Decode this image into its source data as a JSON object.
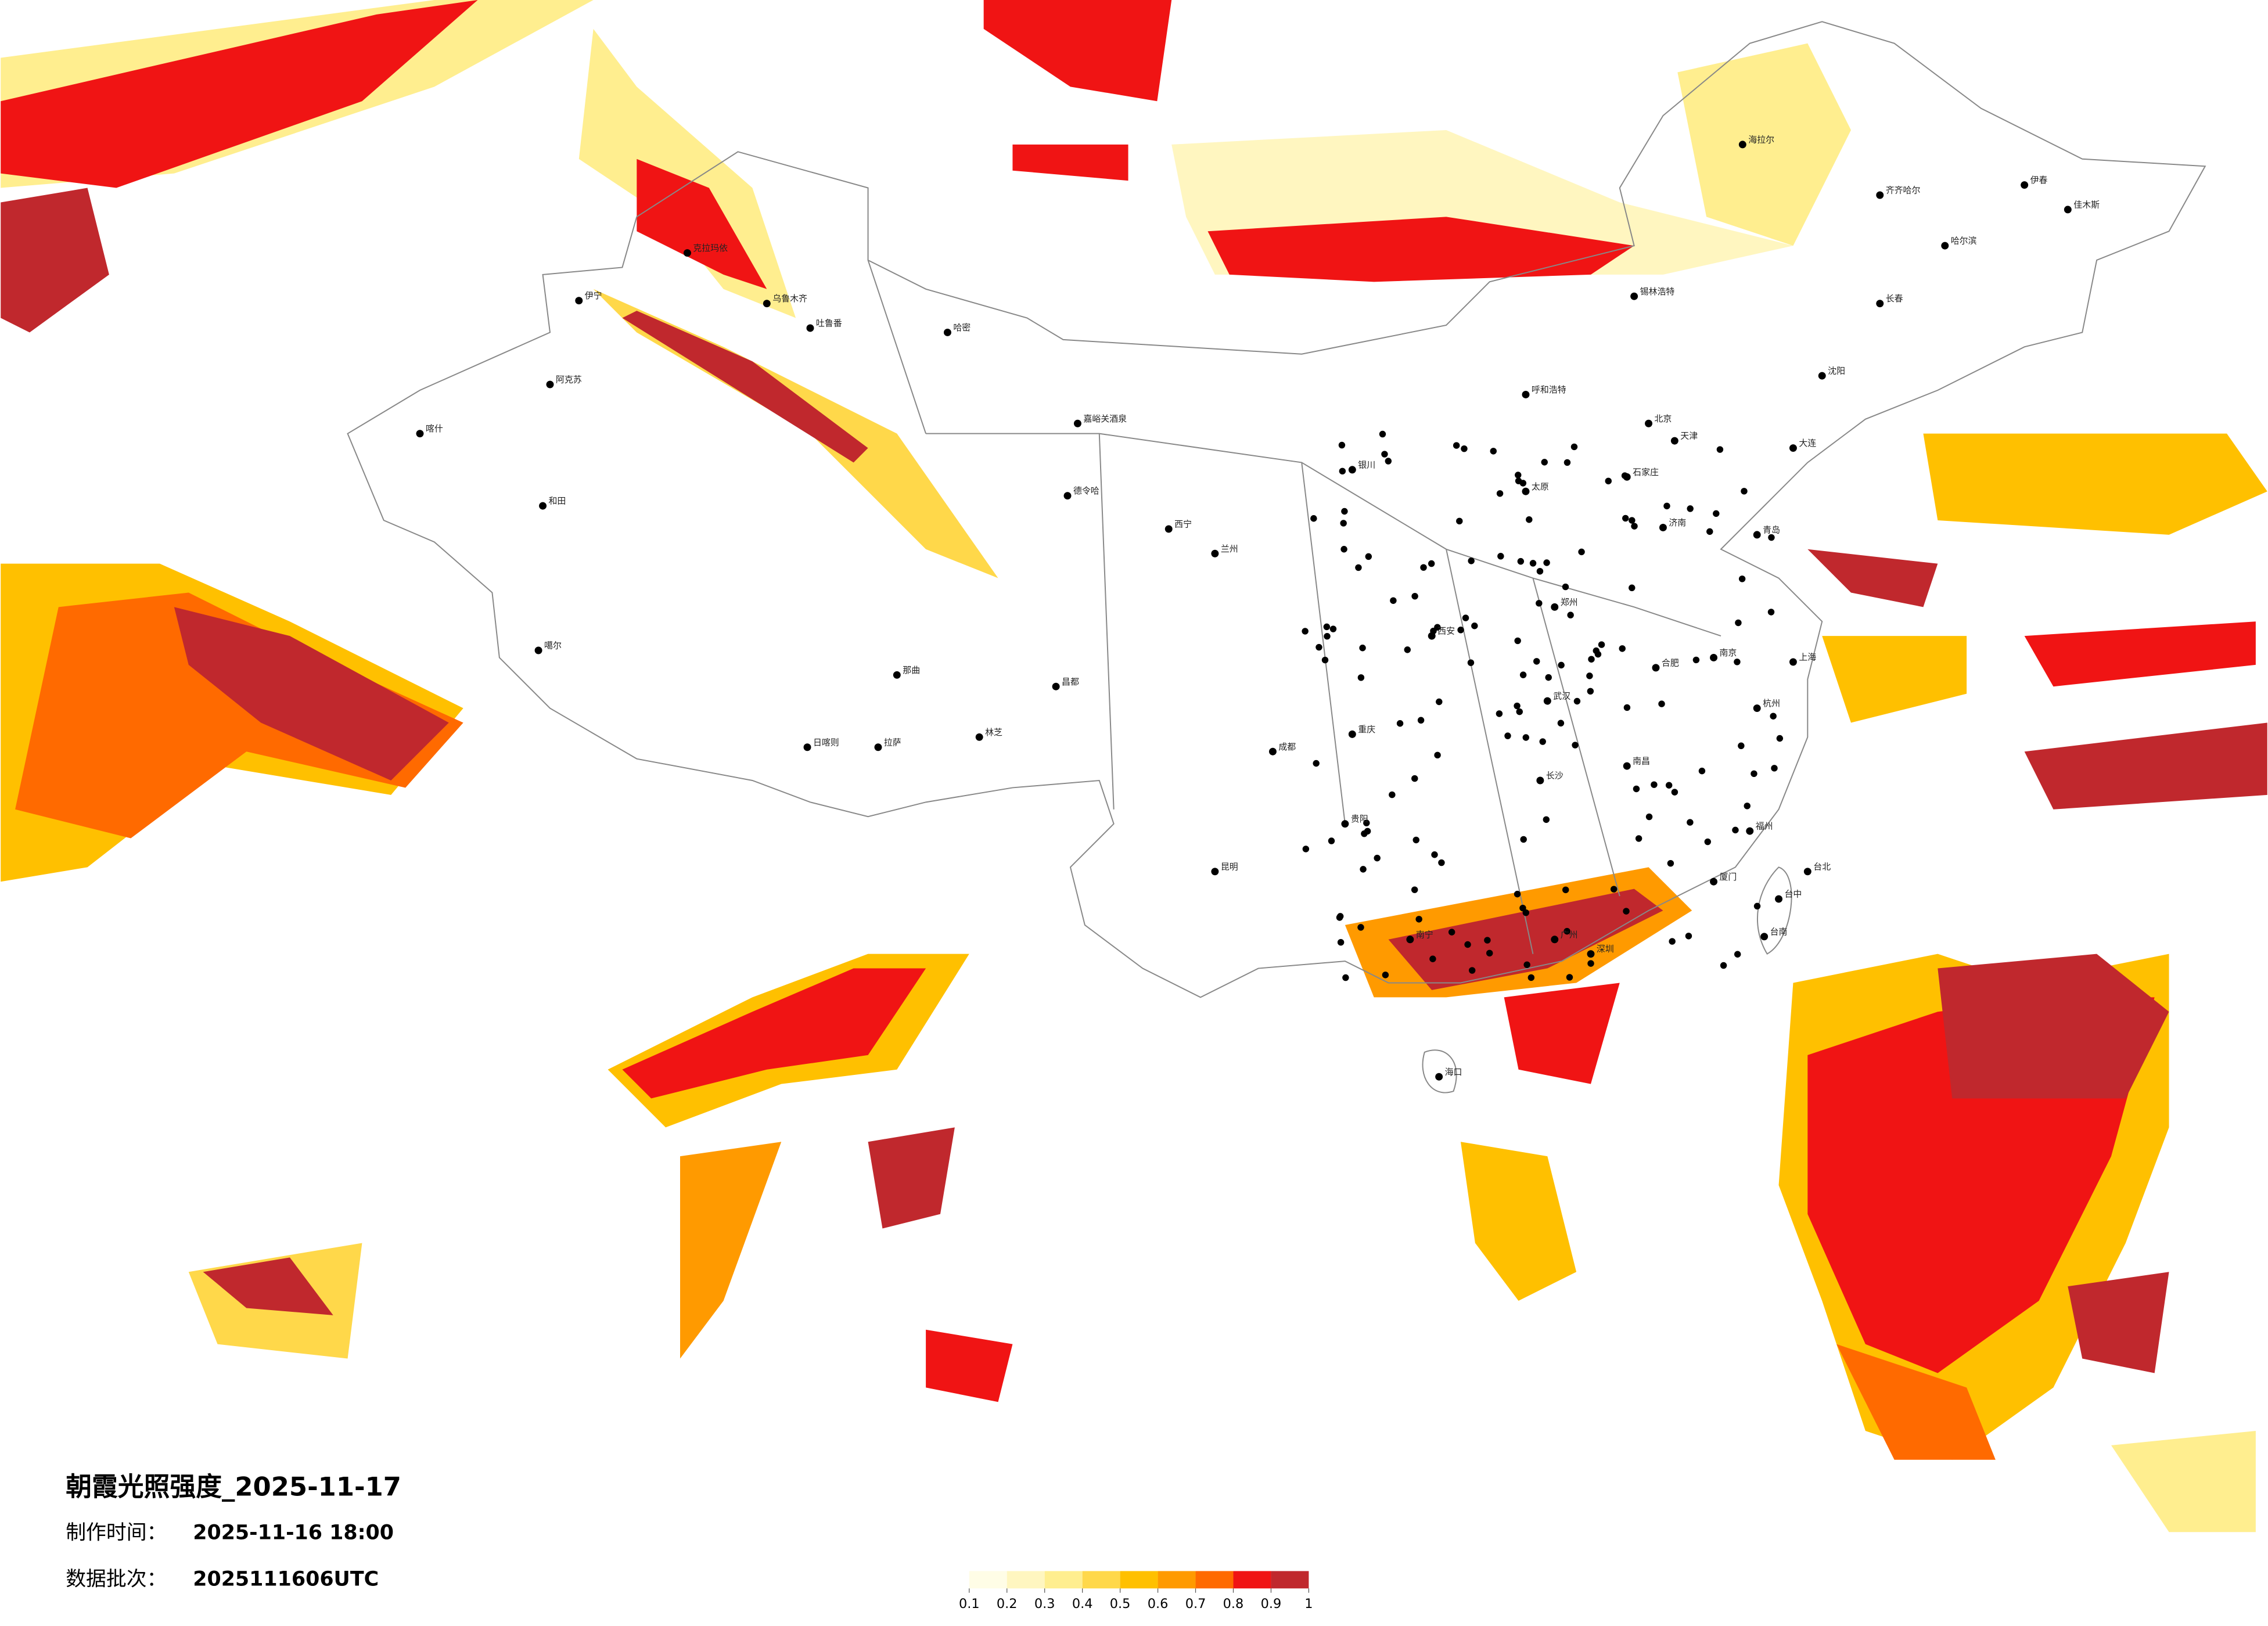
{
  "title": "朝霞光照强度_2025-11-17",
  "made_time": {
    "label": "制作时间：",
    "value": "2025-11-16 18:00"
  },
  "batch": {
    "label": "数据批次：",
    "value": "2025111606UTC"
  },
  "legend": {
    "colors": [
      "#fffde6",
      "#fff6c0",
      "#ffee8f",
      "#ffd84a",
      "#ffc000",
      "#ff9a00",
      "#ff6a00",
      "#f01414",
      "#c0282d"
    ],
    "ticks": [
      0.1,
      0.2,
      0.3,
      0.4,
      0.5,
      0.6,
      0.7,
      0.8,
      0.9,
      1
    ]
  },
  "cities": [
    "克拉玛依",
    "乌鲁木齐",
    "伊宁",
    "阿克苏",
    "喀什",
    "和田",
    "哈密",
    "吐鲁番",
    "嘉峪关酒泉",
    "德令哈",
    "西宁",
    "兰州",
    "拉萨",
    "日喀则",
    "林芝",
    "噶尔",
    "那曲",
    "昌都",
    "成都",
    "重庆",
    "昆明",
    "贵阳",
    "南宁",
    "海口",
    "广州",
    "深圳",
    "厦门",
    "福州",
    "台北",
    "台中",
    "台南",
    "杭州",
    "上海",
    "南京",
    "合肥",
    "武汉",
    "长沙",
    "南昌",
    "郑州",
    "西安",
    "太原",
    "石家庄",
    "北京",
    "天津",
    "济南",
    "青岛",
    "大连",
    "沈阳",
    "长春",
    "哈尔滨",
    "齐齐哈尔",
    "呼和浩特",
    "银川",
    "锡林浩特",
    "海拉尔",
    "伊春",
    "佳木斯"
  ]
}
